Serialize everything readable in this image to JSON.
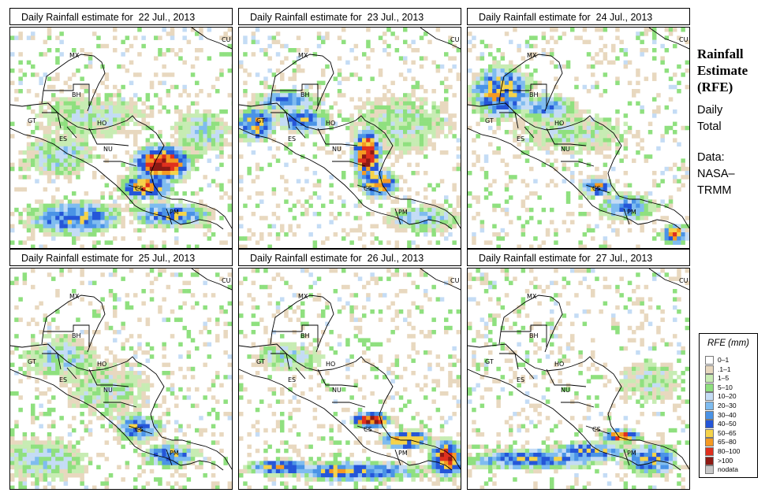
{
  "panels": [
    {
      "title": "Daily Rainfall estimate for  22 Jul., 2013"
    },
    {
      "title": "Daily Rainfall estimate for  23 Jul., 2013"
    },
    {
      "title": "Daily Rainfall estimate for  24 Jul., 2013"
    },
    {
      "title": "Daily Rainfall estimate for  25 Jul., 2013"
    },
    {
      "title": "Daily Rainfall estimate for  26 Jul., 2013"
    },
    {
      "title": "Daily Rainfall estimate for  27 Jul., 2013"
    }
  ],
  "map_labels": [
    "MX",
    "BH",
    "GT",
    "HO",
    "ES",
    "NU",
    "CS",
    "PM",
    "CU"
  ],
  "sidebar": {
    "title_line1": "Rainfall",
    "title_line2": "Estimate",
    "title_line3": "(RFE)",
    "period_line1": "Daily",
    "period_line2": "Total",
    "source_line1": "Data:",
    "source_line2": "NASA–",
    "source_line3": "TRMM"
  },
  "legend": {
    "title": "RFE (mm)",
    "items": [
      {
        "label": "0–1",
        "color": "#ffffff"
      },
      {
        "label": ".1–1",
        "color": "#e8d8bf"
      },
      {
        "label": "1–5",
        "color": "#c7ecb3"
      },
      {
        "label": "5–10",
        "color": "#8fe07f"
      },
      {
        "label": "10–20",
        "color": "#c4dcf5"
      },
      {
        "label": "20–30",
        "color": "#7fbcef"
      },
      {
        "label": "30–40",
        "color": "#4a93e6"
      },
      {
        "label": "40–50",
        "color": "#2556d8"
      },
      {
        "label": "50–65",
        "color": "#f5d34a"
      },
      {
        "label": "65–80",
        "color": "#f59a22"
      },
      {
        "label": "80–100",
        "color": "#e0301e"
      },
      {
        "label": ">100",
        "color": "#8e1a14"
      },
      {
        "label": "nodata",
        "color": "#c8c8c8"
      }
    ]
  }
}
